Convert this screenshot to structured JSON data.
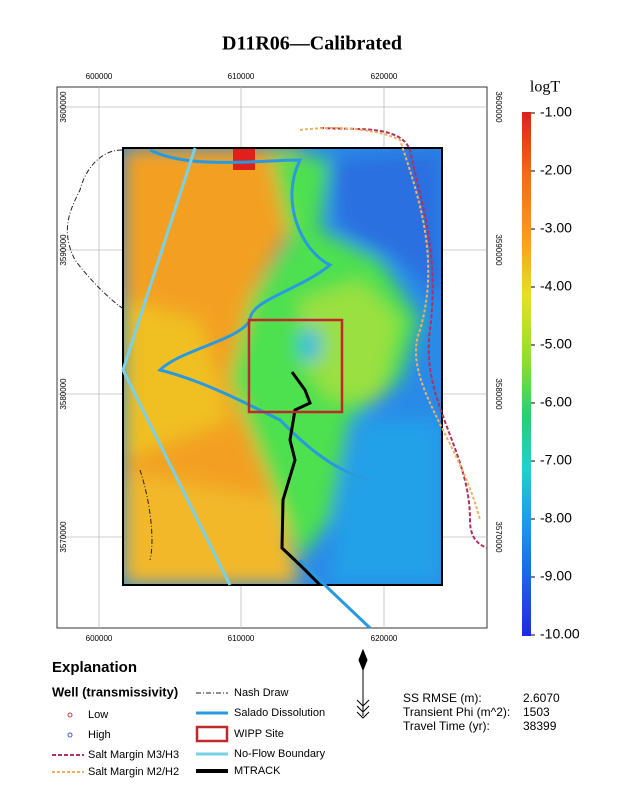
{
  "title": "D11R06—Calibrated",
  "map": {
    "x_ticks": [
      "600000",
      "610000",
      "620000"
    ],
    "y_ticks": [
      "3600000",
      "3590000",
      "3580000",
      "3570000"
    ]
  },
  "colorbar": {
    "label": "logT",
    "ticks": [
      "-1.00",
      "-2.00",
      "-3.00",
      "-4.00",
      "-5.00",
      "-6.00",
      "-7.00",
      "-8.00",
      "-9.00",
      "-10.00"
    ]
  },
  "explanation": {
    "heading": "Explanation",
    "subheading": "Well (transmissivity)",
    "wells": [
      "Low",
      "High"
    ],
    "margins": [
      "Salt Margin M3/H3",
      "Salt Margin M2/H2"
    ],
    "lines": [
      "Nash Draw",
      "Salado Dissolution",
      "WIPP Site",
      "No-Flow Boundary",
      "MTRACK"
    ]
  },
  "stats": [
    {
      "label": "SS RMSE (m):",
      "value": "2.6070"
    },
    {
      "label": "Transient Phi (m^2):",
      "value": "1503"
    },
    {
      "label": "Travel Time (yr):",
      "value": "38399"
    }
  ]
}
